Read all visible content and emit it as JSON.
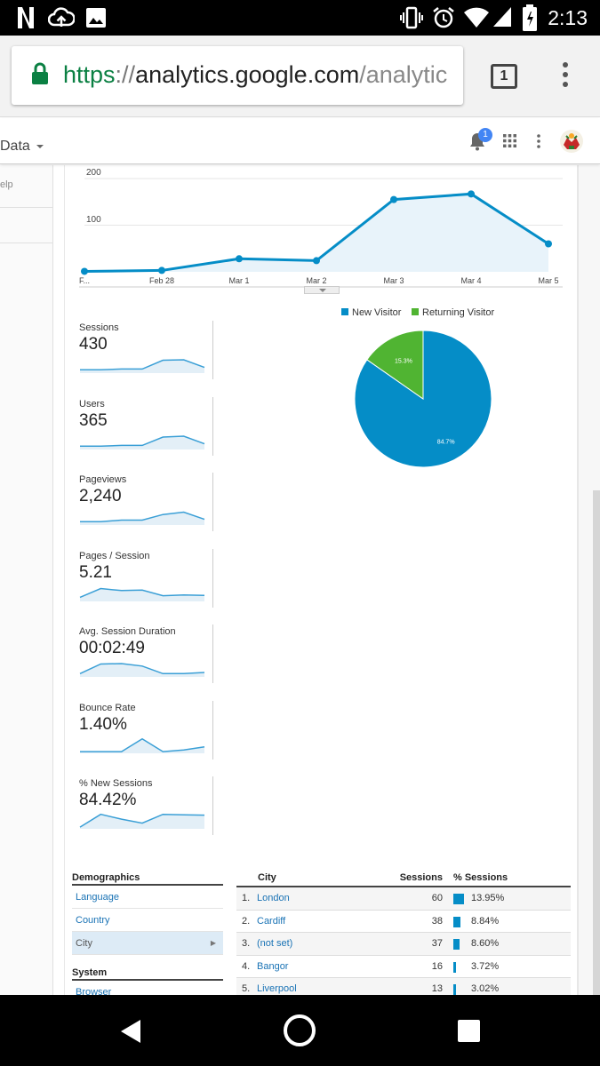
{
  "status_bar": {
    "time": "2:13",
    "left_icons": [
      "netflix-icon",
      "cloud-upload-icon",
      "image-icon"
    ],
    "right_icons": [
      "vibrate-icon",
      "alarm-icon",
      "wifi-icon",
      "signal-icon",
      "battery-icon"
    ]
  },
  "browser": {
    "url_scheme": "https",
    "url_sep": "://",
    "url_host": "analytics.google.com",
    "url_path": "/analytic",
    "tab_count": "1"
  },
  "ga_header": {
    "view_label": "Data",
    "notification_count": "1"
  },
  "sidebar": {
    "help_label": "elp"
  },
  "colors": {
    "accent": "#058dc7",
    "returning": "#50b432",
    "link": "#1a73b5"
  },
  "chart_data": [
    {
      "type": "area",
      "categories": [
        "F...",
        "Feb 28",
        "Mar 1",
        "Mar 2",
        "Mar 3",
        "Mar 4",
        "Mar 5"
      ],
      "series": [
        {
          "values": [
            1,
            3,
            28,
            24,
            155,
            167,
            60
          ]
        }
      ],
      "y_ticks": [
        "100",
        "200"
      ],
      "ylim": [
        0,
        200
      ],
      "grid": true
    },
    {
      "type": "pie",
      "categories": [
        "New Visitor",
        "Returning Visitor"
      ],
      "values": [
        84.7,
        15.3
      ],
      "labels": [
        "84.7%",
        "15.3%"
      ],
      "colors": [
        "#058dc7",
        "#50b432"
      ],
      "legend": "top"
    }
  ],
  "metrics": [
    {
      "label": "Sessions",
      "value": "430",
      "spark": [
        0.15,
        0.15,
        0.2,
        0.2,
        0.75,
        0.78,
        0.3
      ]
    },
    {
      "label": "Users",
      "value": "365",
      "spark": [
        0.15,
        0.15,
        0.2,
        0.2,
        0.72,
        0.78,
        0.3
      ]
    },
    {
      "label": "Pageviews",
      "value": "2,240",
      "spark": [
        0.15,
        0.15,
        0.25,
        0.25,
        0.6,
        0.75,
        0.3
      ]
    },
    {
      "label": "Pages / Session",
      "value": "5.21",
      "spark": [
        0.2,
        0.75,
        0.62,
        0.65,
        0.3,
        0.35,
        0.32
      ]
    },
    {
      "label": "Avg. Session Duration",
      "value": "00:02:49",
      "spark": [
        0.15,
        0.75,
        0.78,
        0.62,
        0.15,
        0.15,
        0.22
      ]
    },
    {
      "label": "Bounce Rate",
      "value": "1.40%",
      "spark": [
        0.05,
        0.05,
        0.05,
        0.85,
        0.05,
        0.15,
        0.35
      ]
    },
    {
      "label": "% New Sessions",
      "value": "84.42%",
      "spark": [
        0.05,
        0.85,
        0.55,
        0.3,
        0.85,
        0.82,
        0.8
      ]
    }
  ],
  "demographics": {
    "title": "Demographics",
    "items": [
      "Language",
      "Country",
      "City"
    ],
    "selected": "City",
    "system_title": "System",
    "system_items": [
      "Browser"
    ]
  },
  "city_table": {
    "headers": {
      "city": "City",
      "sessions": "Sessions",
      "pct": "% Sessions"
    },
    "rows": [
      {
        "rank": "1.",
        "city": "London",
        "sessions": "60",
        "pct": "13.95%",
        "share": 13.95
      },
      {
        "rank": "2.",
        "city": "Cardiff",
        "sessions": "38",
        "pct": "8.84%",
        "share": 8.84
      },
      {
        "rank": "3.",
        "city": "(not set)",
        "sessions": "37",
        "pct": "8.60%",
        "share": 8.6
      },
      {
        "rank": "4.",
        "city": "Bangor",
        "sessions": "16",
        "pct": "3.72%",
        "share": 3.72
      },
      {
        "rank": "5.",
        "city": "Liverpool",
        "sessions": "13",
        "pct": "3.02%",
        "share": 3.02
      }
    ]
  }
}
